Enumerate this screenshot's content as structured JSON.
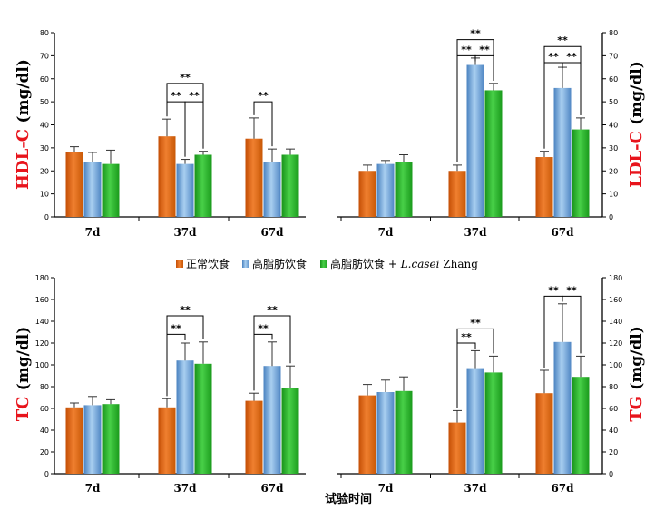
{
  "colors": {
    "normal": "#e8650f",
    "highfat": "#6ea6d8",
    "casei": "#2cb22c",
    "label_red": "#e8141c"
  },
  "legend": [
    {
      "name": "正常饮食",
      "italic": "",
      "suffix": ""
    },
    {
      "name": "高脂肪饮食",
      "italic": "",
      "suffix": ""
    },
    {
      "name": "高脂肪饮食 + ",
      "italic": "L.casei",
      "suffix": " Zhang"
    }
  ],
  "x_title": "试验时间",
  "chart_data": [
    {
      "type": "bar",
      "ylabel": "HDL-C",
      "yunit": "(mg/dl)",
      "ylim": [
        0,
        80
      ],
      "yticks": [
        0,
        10,
        20,
        30,
        40,
        50,
        60,
        70,
        80
      ],
      "categories": [
        "7d",
        "37d",
        "67d"
      ],
      "series": [
        {
          "name": "正常饮食",
          "values": [
            28,
            35,
            34
          ],
          "errors": [
            2.5,
            7.5,
            9
          ]
        },
        {
          "name": "高脂肪饮食",
          "values": [
            24,
            23,
            24
          ],
          "errors": [
            4,
            2,
            5.5
          ]
        },
        {
          "name": "高脂肪饮食 + L.casei Zhang",
          "values": [
            23,
            27,
            27
          ],
          "errors": [
            6,
            1.5,
            2.5
          ]
        }
      ],
      "annotations": [
        {
          "text": "**",
          "cat": 1,
          "from": 0,
          "to": 2,
          "level": 58
        },
        {
          "text": "**",
          "cat": 1,
          "from": 0,
          "to": 1,
          "level": 50
        },
        {
          "text": "**",
          "cat": 1,
          "from": 1,
          "to": 2,
          "level": 50
        },
        {
          "text": "**",
          "cat": 2,
          "from": 0,
          "to": 1,
          "level": 50
        }
      ]
    },
    {
      "type": "bar",
      "ylabel": "LDL-C",
      "yunit": "(mg/dl)",
      "ylim": [
        0,
        80
      ],
      "yticks": [
        0,
        10,
        20,
        30,
        40,
        50,
        60,
        70,
        80
      ],
      "categories": [
        "7d",
        "37d",
        "67d"
      ],
      "series": [
        {
          "name": "正常饮食",
          "values": [
            20,
            20,
            26
          ],
          "errors": [
            2.5,
            2.5,
            2.5
          ]
        },
        {
          "name": "高脂肪饮食",
          "values": [
            23,
            66,
            56
          ],
          "errors": [
            1.5,
            3,
            9
          ]
        },
        {
          "name": "高脂肪饮食 + L.casei Zhang",
          "values": [
            24,
            55,
            38
          ],
          "errors": [
            3,
            3,
            5
          ]
        }
      ],
      "annotations": [
        {
          "text": "**",
          "cat": 1,
          "from": 0,
          "to": 2,
          "level": 77
        },
        {
          "text": "**",
          "cat": 1,
          "from": 0,
          "to": 1,
          "level": 70
        },
        {
          "text": "**",
          "cat": 1,
          "from": 1,
          "to": 2,
          "level": 70
        },
        {
          "text": "**",
          "cat": 2,
          "from": 0,
          "to": 2,
          "level": 74
        },
        {
          "text": "**",
          "cat": 2,
          "from": 0,
          "to": 1,
          "level": 67
        },
        {
          "text": "**",
          "cat": 2,
          "from": 1,
          "to": 2,
          "level": 67
        }
      ]
    },
    {
      "type": "bar",
      "ylabel": "TC",
      "yunit": "(mg/dl)",
      "ylim": [
        0,
        180
      ],
      "yticks": [
        0,
        20,
        40,
        60,
        80,
        100,
        120,
        140,
        160,
        180
      ],
      "categories": [
        "7d",
        "37d",
        "67d"
      ],
      "series": [
        {
          "name": "正常饮食",
          "values": [
            61,
            61,
            67
          ],
          "errors": [
            4,
            8,
            7
          ]
        },
        {
          "name": "高脂肪饮食",
          "values": [
            63,
            104,
            99
          ],
          "errors": [
            8,
            16,
            22
          ]
        },
        {
          "name": "高脂肪饮食 + L.casei Zhang",
          "values": [
            64,
            101,
            79
          ],
          "errors": [
            4,
            20,
            20
          ]
        }
      ],
      "annotations": [
        {
          "text": "**",
          "cat": 1,
          "from": 0,
          "to": 2,
          "level": 145
        },
        {
          "text": "**",
          "cat": 1,
          "from": 0,
          "to": 1,
          "level": 128
        },
        {
          "text": "**",
          "cat": 2,
          "from": 0,
          "to": 2,
          "level": 145
        },
        {
          "text": "**",
          "cat": 2,
          "from": 0,
          "to": 1,
          "level": 128
        }
      ]
    },
    {
      "type": "bar",
      "ylabel": "TG",
      "yunit": "(mg/dl)",
      "ylim": [
        0,
        180
      ],
      "yticks": [
        0,
        20,
        40,
        60,
        80,
        100,
        120,
        140,
        160,
        180
      ],
      "categories": [
        "7d",
        "37d",
        "67d"
      ],
      "series": [
        {
          "name": "正常饮食",
          "values": [
            72,
            47,
            74
          ],
          "errors": [
            10,
            11,
            21
          ]
        },
        {
          "name": "高脂肪饮食",
          "values": [
            75,
            97,
            121
          ],
          "errors": [
            11,
            16,
            35
          ]
        },
        {
          "name": "高脂肪饮食 + L.casei Zhang",
          "values": [
            76,
            93,
            89
          ],
          "errors": [
            13,
            15,
            19
          ]
        }
      ],
      "annotations": [
        {
          "text": "**",
          "cat": 1,
          "from": 0,
          "to": 2,
          "level": 133
        },
        {
          "text": "**",
          "cat": 1,
          "from": 0,
          "to": 1,
          "level": 120
        },
        {
          "text": "**",
          "cat": 2,
          "from": 0,
          "to": 1,
          "level": 163
        },
        {
          "text": "**",
          "cat": 2,
          "from": 1,
          "to": 2,
          "level": 163
        }
      ]
    }
  ]
}
